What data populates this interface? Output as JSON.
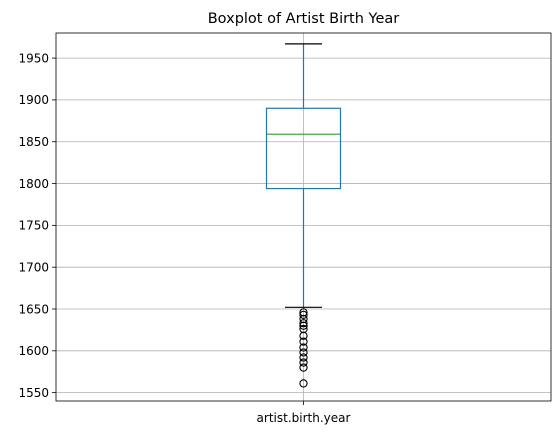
{
  "chart_data": {
    "type": "boxplot",
    "title": "Boxplot of Artist Birth Year",
    "xlabel": "",
    "ylabel": "",
    "categories": [
      "artist.birth.year"
    ],
    "boxes": [
      {
        "name": "artist.birth.year",
        "whisker_low": 1652,
        "q1": 1794,
        "median": 1859,
        "q3": 1890,
        "whisker_high": 1967,
        "outliers": [
          1561,
          1580,
          1586,
          1592,
          1598,
          1604,
          1611,
          1618,
          1626,
          1630,
          1633,
          1638,
          1643,
          1646
        ]
      }
    ],
    "ylim": [
      1540,
      1980
    ],
    "yticks": [
      1550,
      1600,
      1650,
      1700,
      1750,
      1800,
      1850,
      1900,
      1950
    ],
    "grid": true,
    "colors": {
      "box": "#1f77b4",
      "median": "#2ca02c",
      "caps": "#000000",
      "outliers": "#000000",
      "grid": "#b0b0b0"
    }
  }
}
